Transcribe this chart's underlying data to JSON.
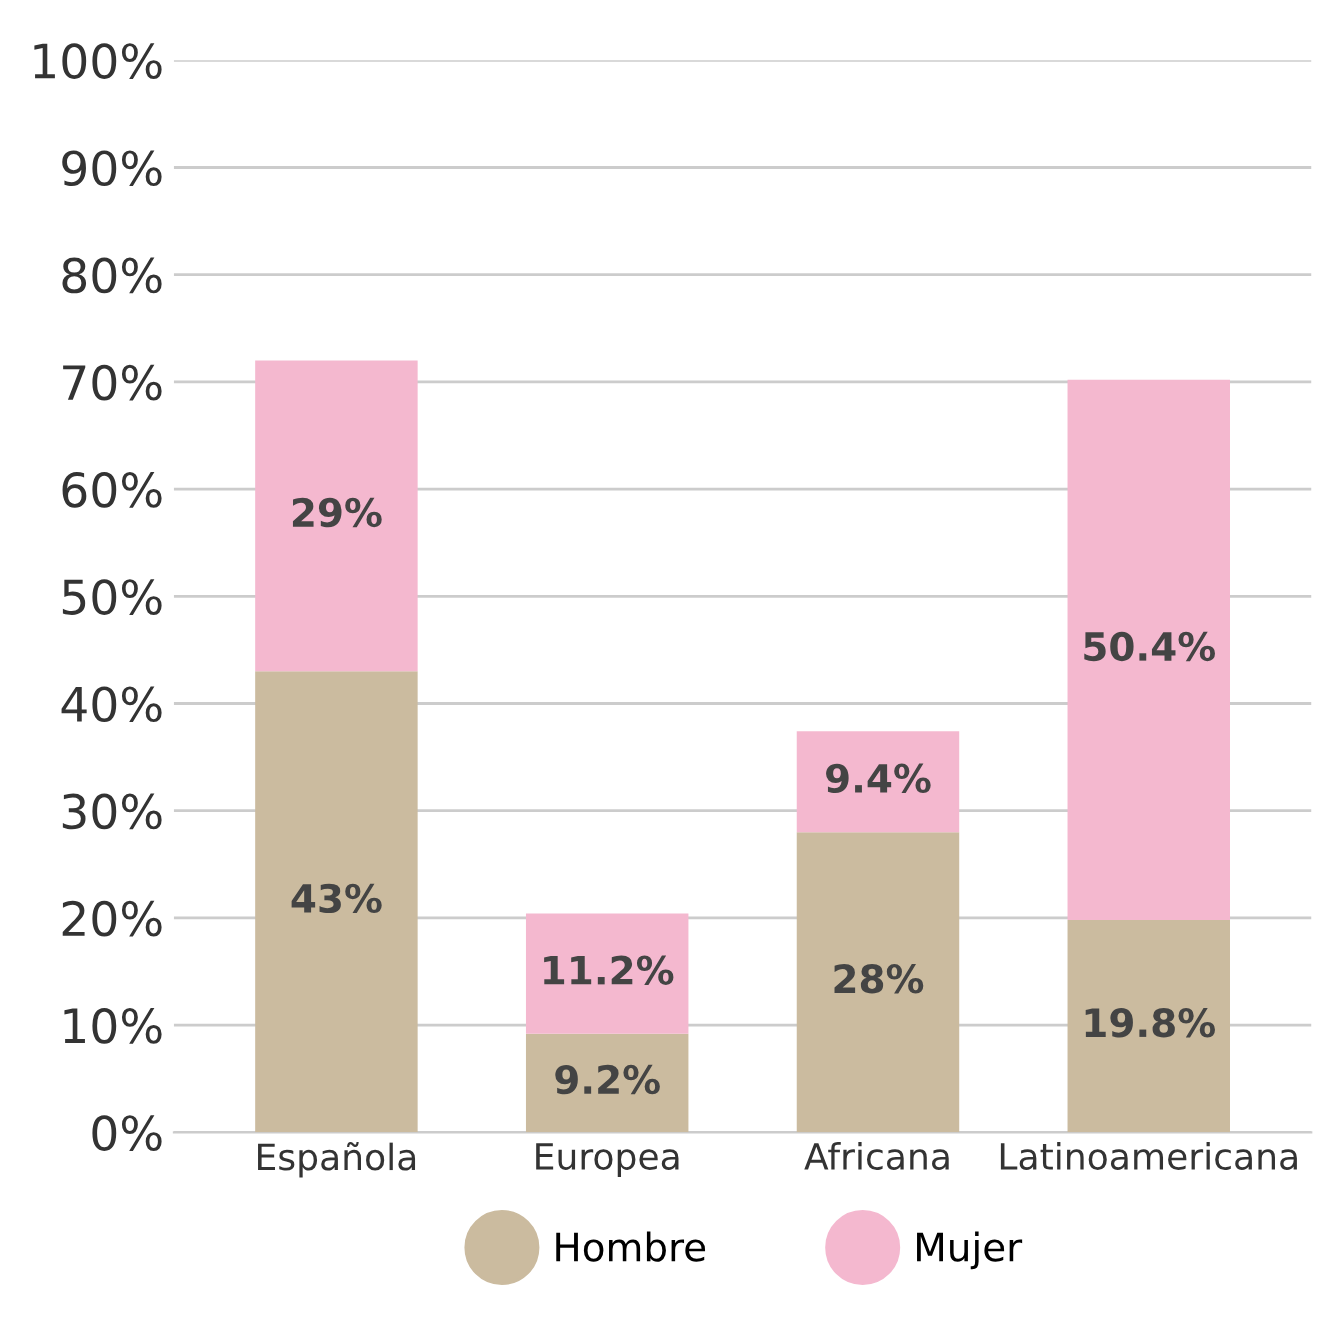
{
  "chart_data": {
    "type": "bar",
    "stacked": true,
    "categories": [
      "Española",
      "Europea",
      "Africana",
      "Latinoamericana"
    ],
    "series": [
      {
        "name": "Hombre",
        "color": "#cbbb9f",
        "values": [
          43,
          9.2,
          28,
          19.8
        ],
        "value_labels": [
          "43%",
          "9.2%",
          "28%",
          "19.8%"
        ]
      },
      {
        "name": "Mujer",
        "color": "#f4b8cf",
        "values": [
          29,
          11.2,
          9.4,
          50.4
        ],
        "value_labels": [
          "29%",
          "11.2%",
          "9.4%",
          "50.4%"
        ]
      }
    ],
    "ylim": [
      0,
      100
    ],
    "yticks": [
      {
        "value": 0,
        "label": "0%"
      },
      {
        "value": 10,
        "label": "10%"
      },
      {
        "value": 20,
        "label": "20%"
      },
      {
        "value": 30,
        "label": "30%"
      },
      {
        "value": 40,
        "label": "40%"
      },
      {
        "value": 50,
        "label": "50%"
      },
      {
        "value": 60,
        "label": "60%"
      },
      {
        "value": 70,
        "label": "70%"
      },
      {
        "value": 80,
        "label": "80%"
      },
      {
        "value": 90,
        "label": "90%"
      },
      {
        "value": 100,
        "label": "100%"
      }
    ],
    "grid": "y",
    "legend": "bottom"
  }
}
